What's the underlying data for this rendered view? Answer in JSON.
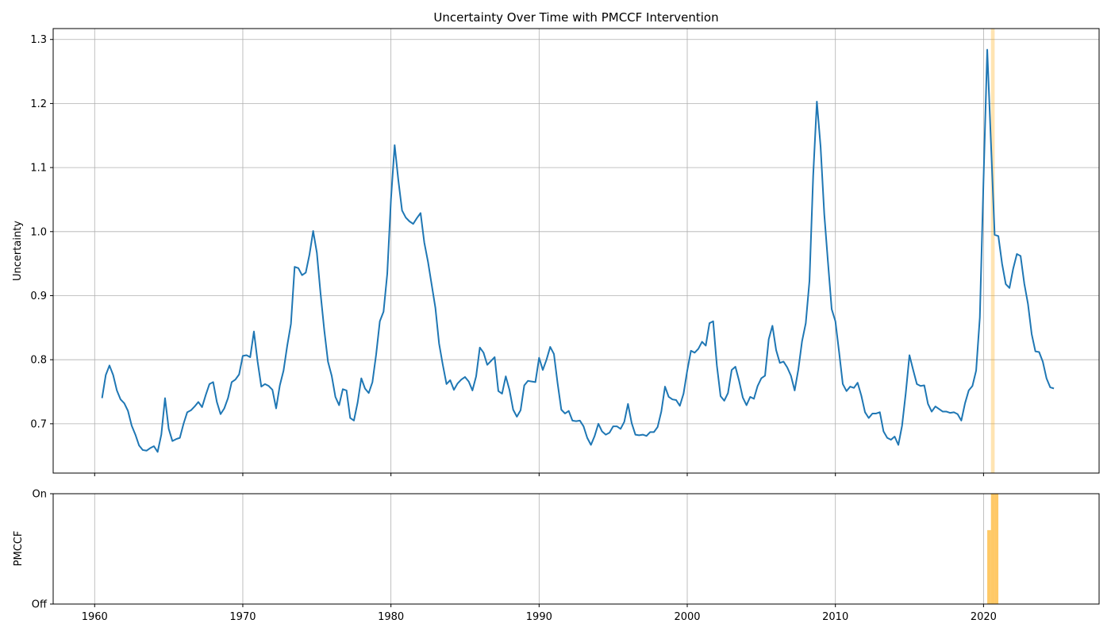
{
  "chart_data": [
    {
      "type": "line",
      "title": "Uncertainty Over Time with PMCCF Intervention",
      "xlabel": "",
      "ylabel": "Uncertainty",
      "xlim": [
        1957.2,
        2027.8
      ],
      "ylim": [
        0.623,
        1.317
      ],
      "xticks": [
        1960,
        1970,
        1980,
        1990,
        2000,
        2010,
        2020
      ],
      "yticks": [
        0.7,
        0.8,
        0.9,
        1.0,
        1.1,
        1.2,
        1.3
      ],
      "grid": true,
      "line_color": "#1f77b4",
      "highlight_span": {
        "x_start": 2020.5,
        "x_end": 2020.75,
        "color": "#ffa500"
      },
      "series": [
        {
          "x": [
            1960.5,
            1960.75,
            1961.0,
            1961.25,
            1961.5,
            1961.75,
            1962.0,
            1962.25,
            1962.5,
            1962.75,
            1963.0,
            1963.25,
            1963.5,
            1963.75,
            1964.0,
            1964.25,
            1964.5,
            1964.75,
            1965.0,
            1965.25,
            1965.5,
            1965.75,
            1966.0,
            1966.25,
            1966.5,
            1966.75,
            1967.0,
            1967.25,
            1967.5,
            1967.75,
            1968.0,
            1968.25,
            1968.5,
            1968.75,
            1969.0,
            1969.25,
            1969.5,
            1969.75,
            1970.0,
            1970.25,
            1970.5,
            1970.75,
            1971.0,
            1971.25,
            1971.5,
            1971.75,
            1972.0,
            1972.25,
            1972.5,
            1972.75,
            1973.0,
            1973.25,
            1973.5,
            1973.75,
            1974.0,
            1974.25,
            1974.5,
            1974.75,
            1975.0,
            1975.25,
            1975.5,
            1975.75,
            1976.0,
            1976.25,
            1976.5,
            1976.75,
            1977.0,
            1977.25,
            1977.5,
            1977.75,
            1978.0,
            1978.25,
            1978.5,
            1978.75,
            1979.0,
            1979.25,
            1979.5,
            1979.75,
            1980.0,
            1980.25,
            1980.5,
            1980.75,
            1981.0,
            1981.25,
            1981.5,
            1981.75,
            1982.0,
            1982.25,
            1982.5,
            1982.75,
            1983.0,
            1983.25,
            1983.5,
            1983.75,
            1984.0,
            1984.25,
            1984.5,
            1984.75,
            1985.0,
            1985.25,
            1985.5,
            1985.75,
            1986.0,
            1986.25,
            1986.5,
            1986.75,
            1987.0,
            1987.25,
            1987.5,
            1987.75,
            1988.0,
            1988.25,
            1988.5,
            1988.75,
            1989.0,
            1989.25,
            1989.5,
            1989.75,
            1990.0,
            1990.25,
            1990.5,
            1990.75,
            1991.0,
            1991.25,
            1991.5,
            1991.75,
            1992.0,
            1992.25,
            1992.5,
            1992.75,
            1993.0,
            1993.25,
            1993.5,
            1993.75,
            1994.0,
            1994.25,
            1994.5,
            1994.75,
            1995.0,
            1995.25,
            1995.5,
            1995.75,
            1996.0,
            1996.25,
            1996.5,
            1996.75,
            1997.0,
            1997.25,
            1997.5,
            1997.75,
            1998.0,
            1998.25,
            1998.5,
            1998.75,
            1999.0,
            1999.25,
            1999.5,
            1999.75,
            2000.0,
            2000.25,
            2000.5,
            2000.75,
            2001.0,
            2001.25,
            2001.5,
            2001.75,
            2002.0,
            2002.25,
            2002.5,
            2002.75,
            2003.0,
            2003.25,
            2003.5,
            2003.75,
            2004.0,
            2004.25,
            2004.5,
            2004.75,
            2005.0,
            2005.25,
            2005.5,
            2005.75,
            2006.0,
            2006.25,
            2006.5,
            2006.75,
            2007.0,
            2007.25,
            2007.5,
            2007.75,
            2008.0,
            2008.25,
            2008.5,
            2008.75,
            2009.0,
            2009.25,
            2009.5,
            2009.75,
            2010.0,
            2010.25,
            2010.5,
            2010.75,
            2011.0,
            2011.25,
            2011.5,
            2011.75,
            2012.0,
            2012.25,
            2012.5,
            2012.75,
            2013.0,
            2013.25,
            2013.5,
            2013.75,
            2014.0,
            2014.25,
            2014.5,
            2014.75,
            2015.0,
            2015.25,
            2015.5,
            2015.75,
            2016.0,
            2016.25,
            2016.5,
            2016.75,
            2017.0,
            2017.25,
            2017.5,
            2017.75,
            2018.0,
            2018.25,
            2018.5,
            2018.75,
            2019.0,
            2019.25,
            2019.5,
            2019.75,
            2020.0,
            2020.25,
            2020.5,
            2020.75,
            2021.0,
            2021.25,
            2021.5,
            2021.75,
            2022.0,
            2022.25,
            2022.5,
            2022.75,
            2023.0,
            2023.25,
            2023.5,
            2023.75,
            2024.0,
            2024.25,
            2024.5,
            2024.75
          ],
          "values": [
            0.74,
            0.776,
            0.791,
            0.776,
            0.752,
            0.738,
            0.732,
            0.72,
            0.697,
            0.683,
            0.666,
            0.659,
            0.658,
            0.662,
            0.665,
            0.656,
            0.683,
            0.74,
            0.692,
            0.673,
            0.676,
            0.678,
            0.7,
            0.718,
            0.721,
            0.727,
            0.734,
            0.726,
            0.745,
            0.762,
            0.765,
            0.734,
            0.715,
            0.724,
            0.74,
            0.765,
            0.769,
            0.777,
            0.806,
            0.807,
            0.804,
            0.844,
            0.797,
            0.758,
            0.762,
            0.759,
            0.753,
            0.724,
            0.76,
            0.783,
            0.822,
            0.856,
            0.945,
            0.943,
            0.932,
            0.936,
            0.964,
            1.001,
            0.967,
            0.903,
            0.846,
            0.797,
            0.775,
            0.742,
            0.729,
            0.754,
            0.752,
            0.709,
            0.705,
            0.733,
            0.771,
            0.755,
            0.748,
            0.765,
            0.808,
            0.86,
            0.875,
            0.934,
            1.05,
            1.135,
            1.08,
            1.033,
            1.022,
            1.016,
            1.012,
            1.021,
            1.029,
            0.983,
            0.953,
            0.917,
            0.881,
            0.825,
            0.792,
            0.762,
            0.768,
            0.753,
            0.763,
            0.769,
            0.773,
            0.766,
            0.752,
            0.774,
            0.819,
            0.811,
            0.792,
            0.798,
            0.804,
            0.751,
            0.747,
            0.774,
            0.753,
            0.722,
            0.711,
            0.721,
            0.76,
            0.767,
            0.766,
            0.765,
            0.803,
            0.784,
            0.8,
            0.82,
            0.809,
            0.763,
            0.722,
            0.716,
            0.72,
            0.705,
            0.704,
            0.705,
            0.696,
            0.678,
            0.667,
            0.681,
            0.7,
            0.688,
            0.683,
            0.686,
            0.696,
            0.696,
            0.692,
            0.703,
            0.731,
            0.701,
            0.683,
            0.682,
            0.683,
            0.681,
            0.687,
            0.687,
            0.695,
            0.719,
            0.758,
            0.742,
            0.738,
            0.737,
            0.728,
            0.747,
            0.783,
            0.814,
            0.811,
            0.817,
            0.828,
            0.822,
            0.857,
            0.86,
            0.791,
            0.743,
            0.736,
            0.748,
            0.784,
            0.789,
            0.767,
            0.741,
            0.729,
            0.742,
            0.739,
            0.759,
            0.771,
            0.775,
            0.832,
            0.853,
            0.815,
            0.795,
            0.797,
            0.788,
            0.775,
            0.752,
            0.785,
            0.829,
            0.857,
            0.923,
            1.087,
            1.203,
            1.133,
            1.027,
            0.952,
            0.879,
            0.86,
            0.812,
            0.762,
            0.751,
            0.758,
            0.756,
            0.764,
            0.744,
            0.718,
            0.709,
            0.716,
            0.716,
            0.718,
            0.688,
            0.678,
            0.675,
            0.68,
            0.667,
            0.697,
            0.748,
            0.807,
            0.784,
            0.762,
            0.759,
            0.76,
            0.731,
            0.719,
            0.727,
            0.723,
            0.719,
            0.719,
            0.717,
            0.718,
            0.715,
            0.705,
            0.732,
            0.752,
            0.759,
            0.783,
            0.866,
            1.082,
            1.284,
            1.139,
            0.995,
            0.993,
            0.95,
            0.918,
            0.912,
            0.942,
            0.965,
            0.962,
            0.919,
            0.887,
            0.84,
            0.813,
            0.812,
            0.797,
            0.771,
            0.757,
            0.755
          ]
        }
      ]
    },
    {
      "type": "step-area",
      "title": "",
      "xlabel": "",
      "ylabel": "PMCCF",
      "xlim": [
        1957.2,
        2027.8
      ],
      "ylim": [
        0,
        1
      ],
      "xticks": [
        1960,
        1970,
        1980,
        1990,
        2000,
        2010,
        2020
      ],
      "xtick_labels": [
        "1960",
        "1970",
        "1980",
        "1990",
        "2000",
        "2010",
        "2020"
      ],
      "yticks": [
        0,
        1
      ],
      "ytick_labels": [
        "Off",
        "On"
      ],
      "grid": true,
      "fill_color": "#ffa500",
      "series": [
        {
          "x": [
            2020.25,
            2020.5,
            2020.75
          ],
          "values": [
            0.67,
            1,
            1
          ],
          "step_width": 0.25
        }
      ]
    }
  ]
}
